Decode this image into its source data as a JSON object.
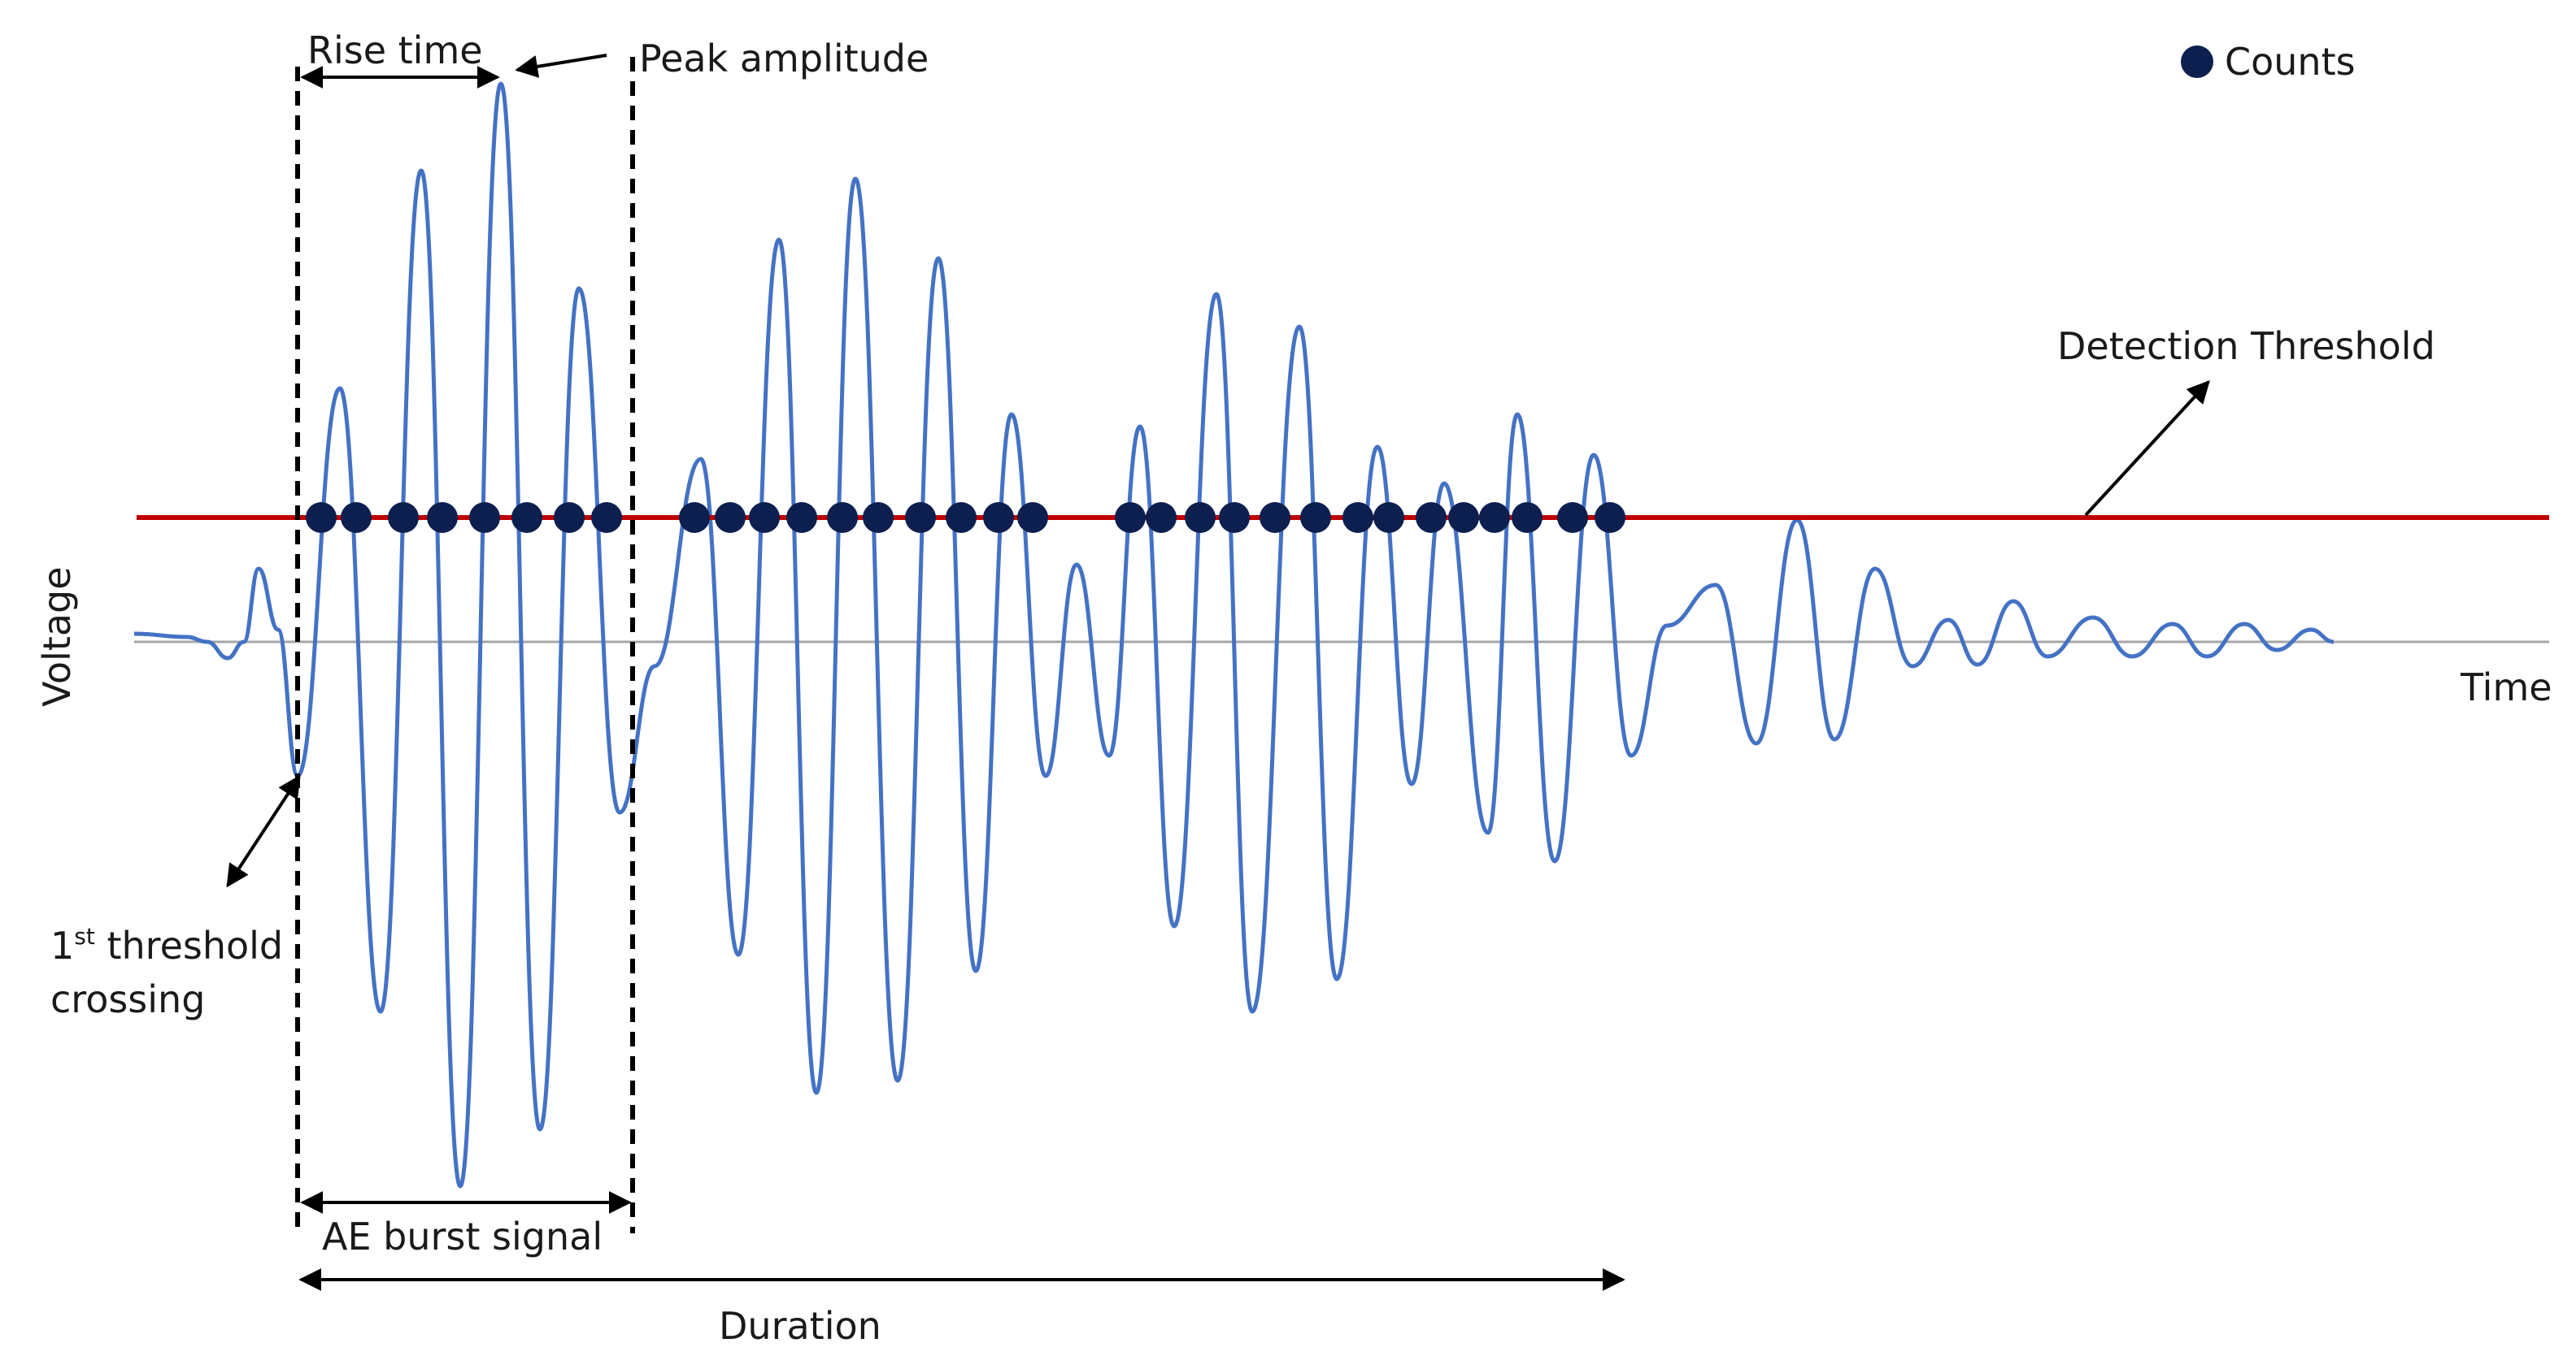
{
  "labels": {
    "rise_time": "Rise time",
    "peak_amplitude": "Peak amplitude",
    "counts": "Counts",
    "detection_threshold": "Detection Threshold",
    "voltage": "Voltage",
    "time": "Time",
    "first_crossing_prefix": "1",
    "first_crossing_sup": "st",
    "first_crossing_rest": " threshold",
    "first_crossing_line2": "crossing",
    "ae_burst_signal": "AE burst signal",
    "duration": "Duration"
  },
  "colors": {
    "waveform": "#4472c4",
    "threshold": "#c00000",
    "count_marker": "#0d1f4f",
    "baseline": "#a6a6a6",
    "annotation": "#000000"
  }
}
